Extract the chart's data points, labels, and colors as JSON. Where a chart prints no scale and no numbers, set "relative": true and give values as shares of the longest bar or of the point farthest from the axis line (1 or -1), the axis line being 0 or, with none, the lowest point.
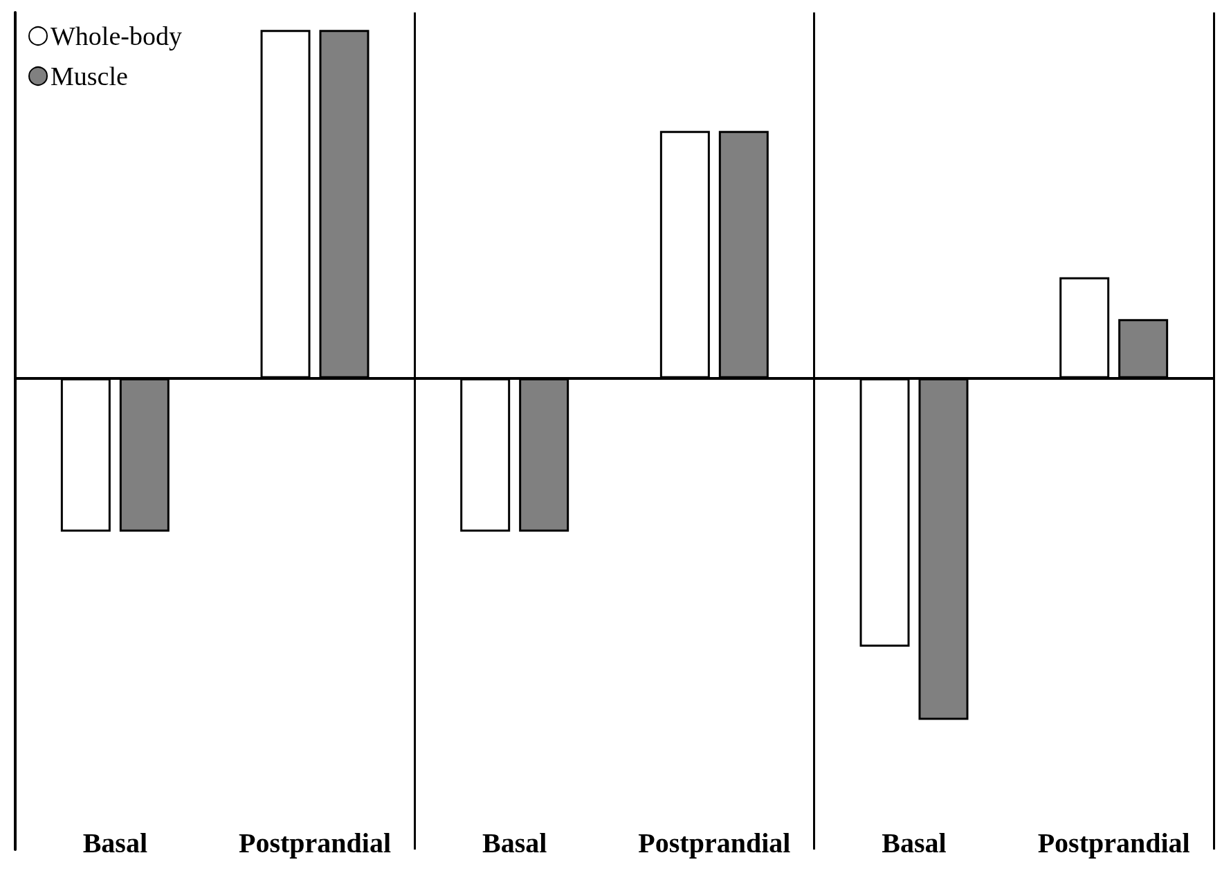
{
  "chart_data": {
    "type": "bar",
    "relative": true,
    "categories": [
      "Basal",
      "Postprandial",
      "Basal",
      "Postprandial",
      "Basal",
      "Postprandial"
    ],
    "series": [
      {
        "name": "Whole-body",
        "color": "#ffffff",
        "values": [
          -0.44,
          1,
          -0.44,
          0.71,
          -0.77,
          0.29
        ]
      },
      {
        "name": "Muscle",
        "color": "#808080",
        "values": [
          -0.44,
          1,
          -0.44,
          0.71,
          -0.98,
          0.17
        ]
      }
    ],
    "legend": "top left",
    "grid": false
  }
}
